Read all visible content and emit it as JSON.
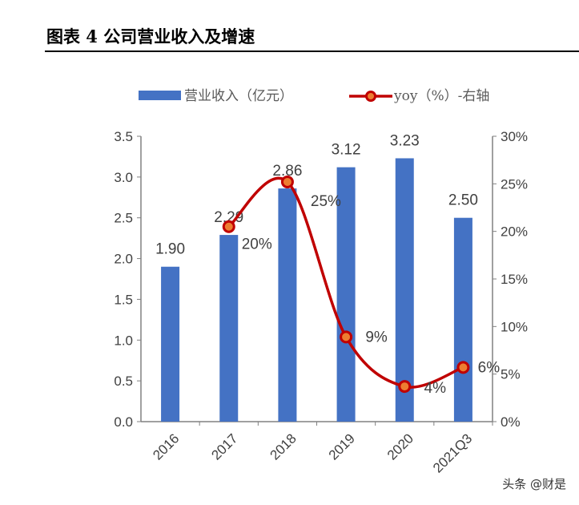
{
  "title": "图表 4 公司营业收入及增速",
  "watermark": "头条 @财是",
  "chart_data": {
    "type": "bar+line",
    "categories": [
      "2016",
      "2017",
      "2018",
      "2019",
      "2020",
      "2021Q3"
    ],
    "series": [
      {
        "name": "营业收入（亿元）",
        "type": "bar",
        "axis": "left",
        "color": "#4472C4",
        "values": [
          1.9,
          2.29,
          2.86,
          3.12,
          3.23,
          2.5
        ],
        "labels": [
          "1.90",
          "2.29",
          "2.86",
          "3.12",
          "3.23",
          "2.50"
        ]
      },
      {
        "name": "yoy（%）-右轴",
        "type": "line",
        "axis": "right",
        "color": "#C00000",
        "marker_fill": "#ED7D31",
        "values": [
          null,
          20.5,
          25.2,
          8.9,
          3.7,
          5.7
        ],
        "labels": [
          null,
          "20%",
          "25%",
          "9%",
          "4%",
          "6%"
        ]
      }
    ],
    "left_axis": {
      "ylim": [
        0,
        3.5
      ],
      "ticks": [
        "0.0",
        "0.5",
        "1.0",
        "1.5",
        "2.0",
        "2.5",
        "3.0",
        "3.5"
      ]
    },
    "right_axis": {
      "ylim": [
        0,
        30
      ],
      "ticks": [
        "0%",
        "5%",
        "10%",
        "15%",
        "20%",
        "25%",
        "30%"
      ]
    },
    "legend": "top",
    "grid": false
  }
}
